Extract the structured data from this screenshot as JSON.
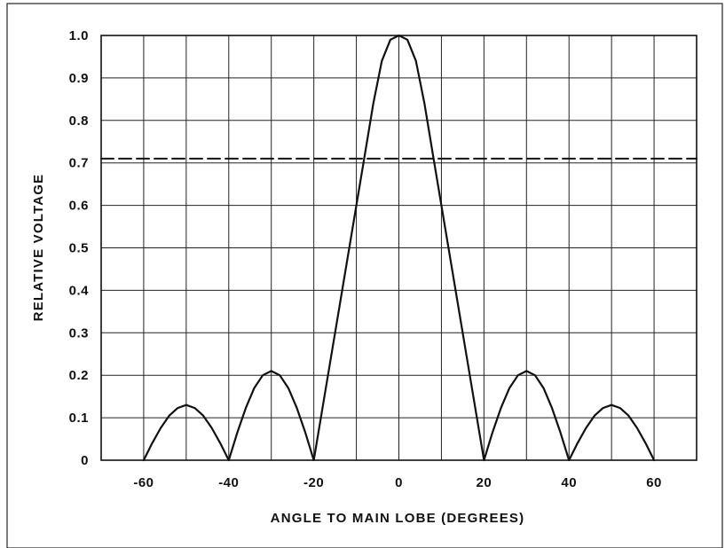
{
  "chart_data": {
    "type": "line",
    "xlabel": "ANGLE TO MAIN LOBE (DEGREES)",
    "ylabel": "RELATIVE VOLTAGE",
    "xlim": [
      -70,
      70
    ],
    "ylim": [
      0,
      1.0
    ],
    "x_ticks": [
      -60,
      -40,
      -20,
      0,
      20,
      40,
      60
    ],
    "x_tick_labels": [
      "-60",
      "-40",
      "-20",
      "0",
      "20",
      "40",
      "60"
    ],
    "y_ticks": [
      0,
      0.1,
      0.2,
      0.3,
      0.4,
      0.5,
      0.6,
      0.7,
      0.8,
      0.9,
      1.0
    ],
    "y_tick_labels": [
      "0",
      "0.1",
      "0.2",
      "0.3",
      "0.4",
      "0.5",
      "0.6",
      "0.7",
      "0.8",
      "0.9",
      "1.0"
    ],
    "grid": true,
    "series": [
      {
        "style": "solid",
        "x": [
          -60,
          -58,
          -56,
          -54,
          -52,
          -50,
          -48,
          -46,
          -44,
          -42,
          -40,
          -38,
          -36,
          -34,
          -32,
          -30,
          -28,
          -26,
          -24,
          -22,
          -20,
          -18,
          -16,
          -14,
          -12,
          -10,
          -8,
          -6,
          -4,
          -2,
          0,
          2,
          4,
          6,
          8,
          10,
          12,
          14,
          16,
          18,
          20,
          22,
          24,
          26,
          28,
          30,
          32,
          34,
          36,
          38,
          40,
          42,
          44,
          46,
          48,
          50,
          52,
          54,
          56,
          58,
          60
        ],
        "y": [
          0,
          0.04,
          0.076,
          0.105,
          0.123,
          0.13,
          0.123,
          0.105,
          0.076,
          0.04,
          0,
          0.065,
          0.123,
          0.17,
          0.2,
          0.21,
          0.2,
          0.17,
          0.123,
          0.065,
          0,
          0.12,
          0.24,
          0.36,
          0.48,
          0.6,
          0.72,
          0.84,
          0.94,
          0.99,
          1.0,
          0.99,
          0.94,
          0.84,
          0.72,
          0.6,
          0.48,
          0.36,
          0.24,
          0.12,
          0,
          0.065,
          0.123,
          0.17,
          0.2,
          0.21,
          0.2,
          0.17,
          0.123,
          0.065,
          0,
          0.04,
          0.076,
          0.105,
          0.123,
          0.13,
          0.123,
          0.105,
          0.076,
          0.04,
          0
        ]
      },
      {
        "style": "dashed",
        "x": [
          -70,
          70
        ],
        "y": [
          0.71,
          0.71
        ]
      }
    ]
  }
}
